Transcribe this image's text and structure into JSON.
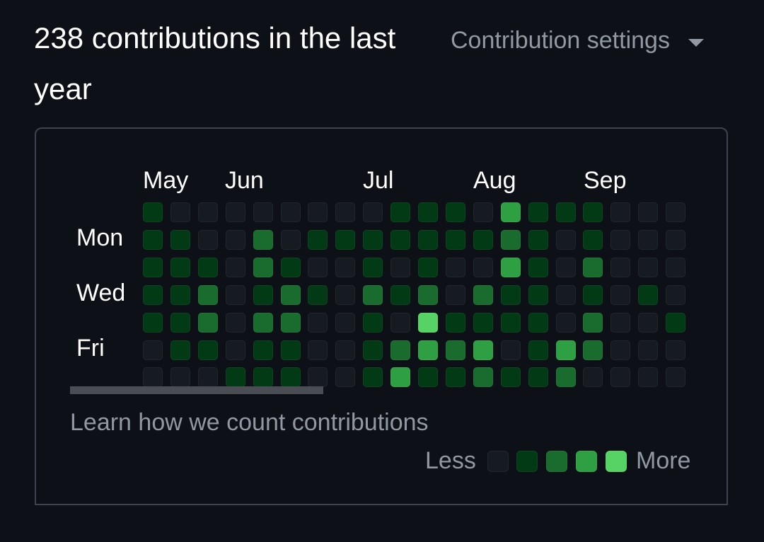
{
  "header": {
    "title": "238 contributions in the last year",
    "settings_label": "Contribution settings",
    "settings_icon": "caret-down-icon"
  },
  "calendar": {
    "months": [
      "May",
      "Jun",
      "Jul",
      "Aug",
      "Sep"
    ],
    "day_labels": [
      "Mon",
      "Wed",
      "Fri"
    ],
    "levels": [
      [
        1,
        0,
        0,
        0,
        0,
        0,
        0,
        0,
        0,
        1,
        1,
        1,
        0,
        3,
        1,
        1,
        1,
        0,
        0,
        0
      ],
      [
        1,
        1,
        0,
        0,
        2,
        0,
        1,
        1,
        1,
        1,
        1,
        1,
        1,
        2,
        1,
        0,
        1,
        0,
        0,
        0
      ],
      [
        1,
        1,
        1,
        0,
        2,
        1,
        0,
        0,
        1,
        0,
        1,
        0,
        0,
        3,
        1,
        0,
        2,
        0,
        0,
        0
      ],
      [
        1,
        1,
        2,
        0,
        1,
        2,
        1,
        0,
        2,
        1,
        2,
        0,
        2,
        1,
        1,
        0,
        1,
        0,
        1,
        0
      ],
      [
        1,
        1,
        2,
        0,
        2,
        2,
        0,
        0,
        1,
        0,
        4,
        1,
        1,
        1,
        1,
        0,
        2,
        0,
        0,
        1
      ],
      [
        0,
        1,
        1,
        0,
        1,
        1,
        0,
        0,
        1,
        2,
        3,
        2,
        3,
        0,
        1,
        3,
        2,
        0,
        0,
        0
      ],
      [
        0,
        0,
        0,
        1,
        1,
        1,
        0,
        0,
        1,
        3,
        1,
        1,
        2,
        1,
        1,
        2,
        0,
        0,
        0,
        0
      ]
    ],
    "colors": [
      "#161b22",
      "#033a16",
      "#196c2e",
      "#2ea043",
      "#56d364"
    ]
  },
  "footer": {
    "learn_link": "Learn how we count contributions",
    "legend_less": "Less",
    "legend_more": "More"
  }
}
